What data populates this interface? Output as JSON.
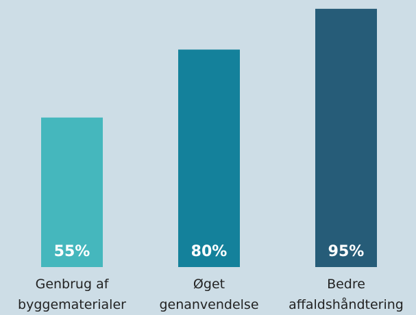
{
  "chart_data": {
    "type": "bar",
    "categories": [
      "Genbrug af\nbyggematerialer",
      "Øget\ngenanvendelse",
      "Bedre\naffaldshåndtering"
    ],
    "values": [
      55,
      80,
      95
    ],
    "value_labels": [
      "55%",
      "80%",
      "95%"
    ],
    "colors": [
      "#45b7bd",
      "#14819b",
      "#265c78"
    ],
    "ylim": [
      0,
      100
    ]
  }
}
